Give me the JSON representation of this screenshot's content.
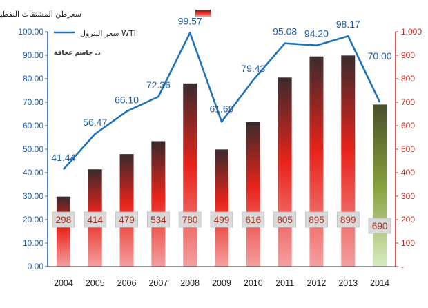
{
  "chart_data": {
    "type": "bar",
    "categories": [
      "2004",
      "2005",
      "2006",
      "2007",
      "2008",
      "2009",
      "2010",
      "2011",
      "2012",
      "2013",
      "2014"
    ],
    "series": [
      {
        "name": "سعرطن المشتقات النفطية",
        "kind": "bar",
        "axis": "right",
        "values": [
          298,
          414,
          479,
          534,
          780,
          499,
          616,
          805,
          895,
          899,
          690
        ],
        "labels": [
          "298",
          "414",
          "479",
          "534",
          "780",
          "499",
          "616",
          "805",
          "895",
          "899",
          "690"
        ]
      },
      {
        "name": "سعر البترول WTI",
        "kind": "line",
        "axis": "left",
        "values": [
          41.44,
          56.47,
          66.1,
          72.36,
          99.57,
          61.69,
          79.43,
          95.08,
          94.2,
          98.17,
          70.0
        ],
        "labels": [
          "41.44",
          "56.47",
          "66.10",
          "72.36",
          "99.57",
          "61.69",
          "79.43",
          "95.08",
          "94.20",
          "98.17",
          "70.00"
        ]
      }
    ],
    "y_left": {
      "range": [
        0,
        100
      ],
      "ticks": [
        "0.00",
        "10.00",
        "20.00",
        "30.00",
        "40.00",
        "50.00",
        "60.00",
        "70.00",
        "80.00",
        "90.00",
        "100.00"
      ]
    },
    "y_right": {
      "range": [
        0,
        1000
      ],
      "ticks": [
        "-",
        "100",
        "200",
        "300",
        "400",
        "500",
        "600",
        "700",
        "800",
        "900",
        "1,000"
      ]
    },
    "legend": {
      "placement": "top-center",
      "bar_label": "سعرطن المشتقات النفطية",
      "line_label": "سعر البترول WTI"
    },
    "annotation": "د. جاسم عجاقة",
    "grid": false,
    "colors": {
      "line": "#1f72b8",
      "line_labels": "#1f5fa8",
      "bar_top": "#3a2a2c",
      "bar_mid": "#e8231a",
      "bar_bottom": "#f4a0a0",
      "bar_last_top": "#4a4f2a",
      "bar_last_bottom": "#d8ecc0",
      "right_axis": "#c0281c",
      "left_axis": "#1f5fa8"
    }
  }
}
